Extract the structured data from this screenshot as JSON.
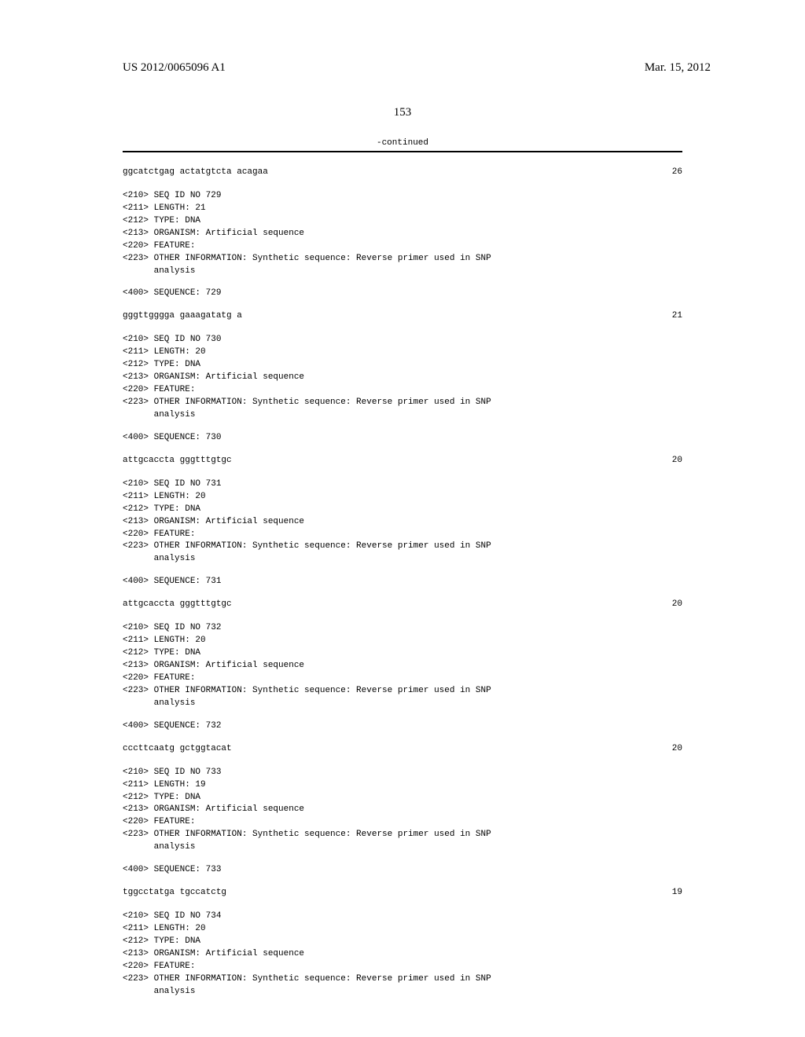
{
  "header": {
    "publication_number": "US 2012/0065096 A1",
    "publication_date": "Mar. 15, 2012",
    "page_number": "153"
  },
  "listing_header": {
    "continued": "-continued"
  },
  "top_seq": {
    "sequence": "ggcatctgag actatgtcta acagaa",
    "length": "26"
  },
  "entries": [
    {
      "seq_id": "<210> SEQ ID NO 729",
      "length_line": "<211> LENGTH: 21",
      "type_line": "<212> TYPE: DNA",
      "organism_line": "<213> ORGANISM: Artificial sequence",
      "feature_line": "<220> FEATURE:",
      "other_info_1": "<223> OTHER INFORMATION: Synthetic sequence: Reverse primer used in SNP",
      "other_info_2": "      analysis",
      "seq_header": "<400> SEQUENCE: 729",
      "sequence": "gggttgggga gaaagatatg a",
      "seq_len": "21"
    },
    {
      "seq_id": "<210> SEQ ID NO 730",
      "length_line": "<211> LENGTH: 20",
      "type_line": "<212> TYPE: DNA",
      "organism_line": "<213> ORGANISM: Artificial sequence",
      "feature_line": "<220> FEATURE:",
      "other_info_1": "<223> OTHER INFORMATION: Synthetic sequence: Reverse primer used in SNP",
      "other_info_2": "      analysis",
      "seq_header": "<400> SEQUENCE: 730",
      "sequence": "attgcaccta gggtttgtgc",
      "seq_len": "20"
    },
    {
      "seq_id": "<210> SEQ ID NO 731",
      "length_line": "<211> LENGTH: 20",
      "type_line": "<212> TYPE: DNA",
      "organism_line": "<213> ORGANISM: Artificial sequence",
      "feature_line": "<220> FEATURE:",
      "other_info_1": "<223> OTHER INFORMATION: Synthetic sequence: Reverse primer used in SNP",
      "other_info_2": "      analysis",
      "seq_header": "<400> SEQUENCE: 731",
      "sequence": "attgcaccta gggtttgtgc",
      "seq_len": "20"
    },
    {
      "seq_id": "<210> SEQ ID NO 732",
      "length_line": "<211> LENGTH: 20",
      "type_line": "<212> TYPE: DNA",
      "organism_line": "<213> ORGANISM: Artificial sequence",
      "feature_line": "<220> FEATURE:",
      "other_info_1": "<223> OTHER INFORMATION: Synthetic sequence: Reverse primer used in SNP",
      "other_info_2": "      analysis",
      "seq_header": "<400> SEQUENCE: 732",
      "sequence": "cccttcaatg gctggtacat",
      "seq_len": "20"
    },
    {
      "seq_id": "<210> SEQ ID NO 733",
      "length_line": "<211> LENGTH: 19",
      "type_line": "<212> TYPE: DNA",
      "organism_line": "<213> ORGANISM: Artificial sequence",
      "feature_line": "<220> FEATURE:",
      "other_info_1": "<223> OTHER INFORMATION: Synthetic sequence: Reverse primer used in SNP",
      "other_info_2": "      analysis",
      "seq_header": "<400> SEQUENCE: 733",
      "sequence": "tggcctatga tgccatctg",
      "seq_len": "19"
    },
    {
      "seq_id": "<210> SEQ ID NO 734",
      "length_line": "<211> LENGTH: 20",
      "type_line": "<212> TYPE: DNA",
      "organism_line": "<213> ORGANISM: Artificial sequence",
      "feature_line": "<220> FEATURE:",
      "other_info_1": "<223> OTHER INFORMATION: Synthetic sequence: Reverse primer used in SNP",
      "other_info_2": "      analysis",
      "seq_header": "",
      "sequence": "",
      "seq_len": ""
    }
  ]
}
